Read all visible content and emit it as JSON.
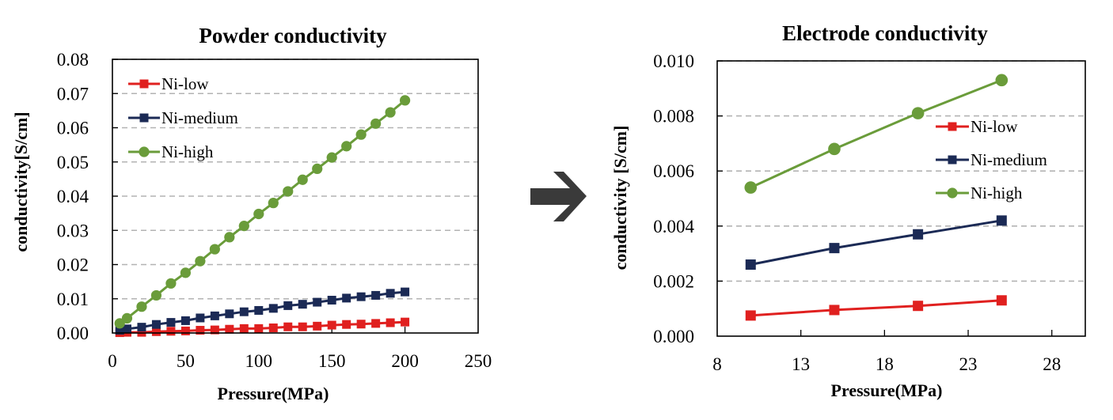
{
  "arrow": {
    "icon": "right-arrow-icon",
    "color": "#3a3a3a"
  },
  "chart_data": [
    {
      "type": "line",
      "title": "Powder conductivity",
      "xlabel": "Pressure(MPa)",
      "ylabel": "conductivity[S/cm]",
      "xlim": [
        0,
        250
      ],
      "ylim": [
        0,
        0.08
      ],
      "x_ticks": [
        "0",
        "50",
        "100",
        "150",
        "200",
        "250"
      ],
      "x_tick_values": [
        0,
        50,
        100,
        150,
        200,
        250
      ],
      "y_ticks": [
        "0.00",
        "0.01",
        "0.02",
        "0.03",
        "0.04",
        "0.05",
        "0.06",
        "0.07",
        "0.08"
      ],
      "y_tick_values": [
        0,
        0.01,
        0.02,
        0.03,
        0.04,
        0.05,
        0.06,
        0.07,
        0.08
      ],
      "grid": "horizontal-dashed",
      "legend_position": "top-left",
      "x": [
        5,
        10,
        20,
        30,
        40,
        50,
        60,
        70,
        80,
        90,
        100,
        110,
        120,
        130,
        140,
        150,
        160,
        170,
        180,
        190,
        200
      ],
      "series": [
        {
          "name": "Ni-low",
          "color": "#e0201f",
          "marker": "square",
          "values": [
            0.0001,
            0.0002,
            0.0002,
            0.0004,
            0.0005,
            0.0006,
            0.0008,
            0.0009,
            0.0011,
            0.0013,
            0.0013,
            0.0015,
            0.0018,
            0.0018,
            0.002,
            0.0023,
            0.0025,
            0.0026,
            0.0028,
            0.003,
            0.0032
          ]
        },
        {
          "name": "Ni-medium",
          "color": "#1b2a55",
          "marker": "square",
          "values": [
            0.0008,
            0.0012,
            0.0017,
            0.0025,
            0.0031,
            0.0036,
            0.0044,
            0.005,
            0.0056,
            0.0062,
            0.0066,
            0.0072,
            0.008,
            0.0084,
            0.009,
            0.0096,
            0.0102,
            0.0106,
            0.011,
            0.0116,
            0.012
          ]
        },
        {
          "name": "Ni-high",
          "color": "#6a9c3a",
          "marker": "circle",
          "values": [
            0.0028,
            0.0043,
            0.0077,
            0.011,
            0.0145,
            0.0176,
            0.021,
            0.0245,
            0.028,
            0.0313,
            0.0348,
            0.038,
            0.0414,
            0.0448,
            0.048,
            0.0513,
            0.0546,
            0.058,
            0.0612,
            0.0645,
            0.068
          ]
        }
      ]
    },
    {
      "type": "line",
      "title": "Electrode conductivity",
      "xlabel": "Pressure(MPa)",
      "ylabel": "conductivity [S/cm]",
      "xlim": [
        8,
        30
      ],
      "ylim": [
        0,
        0.01
      ],
      "x_ticks": [
        "8",
        "13",
        "18",
        "23",
        "28"
      ],
      "x_tick_values": [
        8,
        13,
        18,
        23,
        28
      ],
      "y_ticks": [
        "0.000",
        "0.002",
        "0.004",
        "0.006",
        "0.008",
        "0.010"
      ],
      "y_tick_values": [
        0,
        0.002,
        0.004,
        0.006,
        0.008,
        0.01
      ],
      "grid": "horizontal-dashed",
      "legend_position": "center-right",
      "x": [
        10,
        15,
        20,
        25
      ],
      "series": [
        {
          "name": "Ni-low",
          "color": "#e0201f",
          "marker": "square",
          "values": [
            0.00075,
            0.00095,
            0.0011,
            0.0013
          ]
        },
        {
          "name": "Ni-medium",
          "color": "#1b2a55",
          "marker": "square",
          "values": [
            0.0026,
            0.0032,
            0.0037,
            0.0042
          ]
        },
        {
          "name": "Ni-high",
          "color": "#6a9c3a",
          "marker": "circle",
          "values": [
            0.0054,
            0.0068,
            0.0081,
            0.0093
          ]
        }
      ]
    }
  ]
}
